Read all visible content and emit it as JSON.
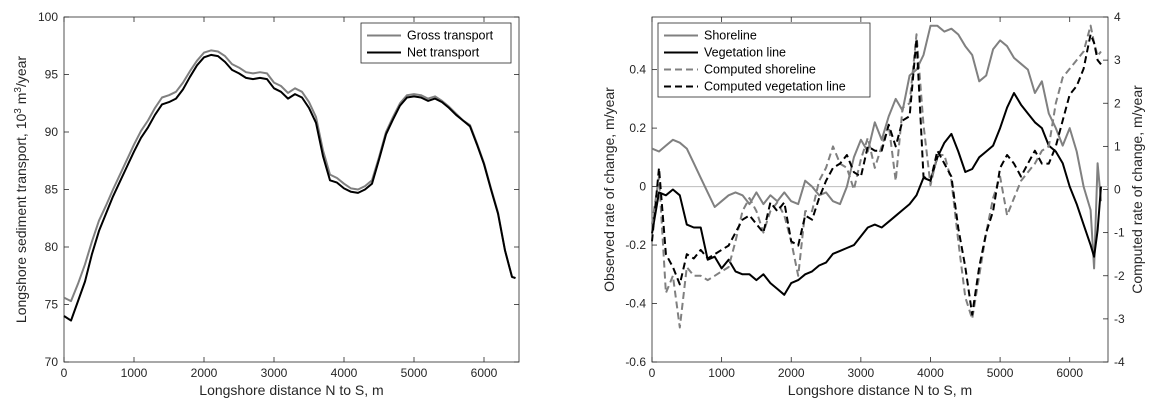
{
  "chart_data": [
    {
      "type": "line",
      "xlabel": "Longshore distance N to S, m",
      "ylabel": "Longshore sediment transport, 10",
      "ylabel_sup": "3",
      "ylabel_mid": " m",
      "ylabel_sup2": "3",
      "ylabel_end": "/year",
      "xlim": [
        0,
        6500
      ],
      "ylim": [
        70,
        100
      ],
      "xticks": [
        0,
        1000,
        2000,
        3000,
        4000,
        5000,
        6000
      ],
      "yticks": [
        70,
        75,
        80,
        85,
        90,
        95,
        100
      ],
      "legend_position": "top-right",
      "series": [
        {
          "name": "Gross transport",
          "color": "#808080",
          "x": [
            0,
            100,
            200,
            300,
            400,
            500,
            600,
            700,
            800,
            900,
            1000,
            1100,
            1200,
            1300,
            1400,
            1500,
            1600,
            1700,
            1800,
            1900,
            2000,
            2100,
            2200,
            2300,
            2400,
            2500,
            2600,
            2700,
            2800,
            2900,
            3000,
            3100,
            3200,
            3300,
            3400,
            3500,
            3600,
            3700,
            3800,
            3900,
            4000,
            4100,
            4200,
            4300,
            4400,
            4500,
            4600,
            4700,
            4800,
            4900,
            5000,
            5100,
            5200,
            5300,
            5400,
            5500,
            5600,
            5700,
            5800,
            5900,
            6000,
            6100,
            6200,
            6300,
            6400,
            6450
          ],
          "y": [
            75.6,
            75.3,
            76.8,
            78.5,
            80.5,
            82.3,
            83.6,
            85.0,
            86.3,
            87.6,
            88.9,
            90.1,
            91.0,
            92.1,
            93.0,
            93.2,
            93.5,
            94.3,
            95.3,
            96.2,
            96.9,
            97.1,
            97.0,
            96.6,
            95.9,
            95.6,
            95.2,
            95.1,
            95.2,
            95.1,
            94.3,
            94.0,
            93.4,
            93.8,
            93.5,
            92.6,
            91.3,
            88.4,
            86.3,
            86.0,
            85.5,
            85.1,
            85.0,
            85.3,
            85.8,
            87.8,
            90.0,
            91.3,
            92.5,
            93.2,
            93.3,
            93.2,
            92.9,
            93.1,
            92.7,
            92.2,
            91.6,
            91.0,
            90.6,
            89.0,
            87.3,
            85.1,
            83.0,
            79.7,
            77.4,
            77.3
          ]
        },
        {
          "name": "Net transport",
          "color": "#000000",
          "x": [
            0,
            100,
            200,
            300,
            400,
            500,
            600,
            700,
            800,
            900,
            1000,
            1100,
            1200,
            1300,
            1400,
            1500,
            1600,
            1700,
            1800,
            1900,
            2000,
            2100,
            2200,
            2300,
            2400,
            2500,
            2600,
            2700,
            2800,
            2900,
            3000,
            3100,
            3200,
            3300,
            3400,
            3500,
            3600,
            3700,
            3800,
            3900,
            4000,
            4100,
            4200,
            4300,
            4400,
            4500,
            4600,
            4700,
            4800,
            4900,
            5000,
            5100,
            5200,
            5300,
            5400,
            5500,
            5600,
            5700,
            5800,
            5900,
            6000,
            6100,
            6200,
            6300,
            6400,
            6450
          ],
          "y": [
            74.0,
            73.6,
            75.3,
            77.0,
            79.4,
            81.4,
            82.9,
            84.4,
            85.7,
            87.0,
            88.3,
            89.5,
            90.4,
            91.5,
            92.4,
            92.6,
            92.9,
            93.7,
            94.8,
            95.8,
            96.5,
            96.7,
            96.6,
            96.1,
            95.4,
            95.1,
            94.7,
            94.6,
            94.7,
            94.6,
            93.8,
            93.5,
            92.9,
            93.3,
            93.0,
            92.1,
            90.8,
            87.9,
            85.8,
            85.6,
            85.1,
            84.8,
            84.7,
            85.0,
            85.5,
            87.6,
            89.8,
            91.1,
            92.3,
            93.0,
            93.1,
            93.0,
            92.7,
            92.9,
            92.6,
            92.1,
            91.5,
            91.0,
            90.5,
            88.9,
            87.2,
            85.0,
            82.9,
            79.7,
            77.4,
            77.3
          ]
        }
      ]
    },
    {
      "type": "line",
      "xlabel": "Longshore distance N to S, m",
      "ylabel": "Observed rate of change, m/year",
      "ylabel_right": "Computed rate of change, m/year",
      "xlim": [
        0,
        6550
      ],
      "ylim": [
        -0.6,
        0.58
      ],
      "ylim_right": [
        -4,
        4
      ],
      "xticks": [
        0,
        1000,
        2000,
        3000,
        4000,
        5000,
        6000
      ],
      "yticks": [
        -0.6,
        -0.4,
        -0.2,
        0,
        0.2,
        0.4
      ],
      "yticks_labels": [
        "-0.6",
        "-0.4",
        "-0.2",
        "0",
        "0.2",
        "0.4"
      ],
      "yticks_right": [
        -4,
        -3,
        -2,
        -1,
        0,
        1,
        2,
        3,
        4
      ],
      "zero_line": true,
      "legend_position": "top-left",
      "series": [
        {
          "name": "Shoreline",
          "axis": "left",
          "style": "solid",
          "color": "#808080",
          "x": [
            0,
            100,
            200,
            300,
            400,
            500,
            600,
            700,
            800,
            900,
            1000,
            1100,
            1200,
            1300,
            1400,
            1500,
            1600,
            1700,
            1800,
            1900,
            2000,
            2100,
            2200,
            2300,
            2400,
            2500,
            2600,
            2700,
            2800,
            2900,
            3000,
            3100,
            3200,
            3300,
            3400,
            3500,
            3600,
            3700,
            3800,
            3900,
            4000,
            4100,
            4200,
            4300,
            4400,
            4500,
            4600,
            4700,
            4800,
            4900,
            5000,
            5100,
            5200,
            5300,
            5400,
            5500,
            5600,
            5700,
            5800,
            5900,
            6000,
            6100,
            6200,
            6300,
            6350,
            6400,
            6450
          ],
          "y": [
            0.13,
            0.12,
            0.14,
            0.16,
            0.15,
            0.13,
            0.08,
            0.03,
            -0.02,
            -0.07,
            -0.05,
            -0.03,
            -0.02,
            -0.03,
            -0.06,
            -0.02,
            -0.06,
            -0.03,
            -0.05,
            -0.02,
            -0.05,
            -0.06,
            0.02,
            0.0,
            -0.03,
            -0.02,
            -0.05,
            -0.06,
            0.0,
            0.1,
            0.16,
            0.12,
            0.22,
            0.16,
            0.24,
            0.3,
            0.26,
            0.38,
            0.4,
            0.45,
            0.55,
            0.55,
            0.53,
            0.54,
            0.52,
            0.48,
            0.45,
            0.36,
            0.38,
            0.47,
            0.5,
            0.48,
            0.44,
            0.42,
            0.4,
            0.32,
            0.36,
            0.25,
            0.2,
            0.14,
            0.2,
            0.12,
            0.0,
            -0.08,
            -0.28,
            0.08,
            -0.05
          ]
        },
        {
          "name": "Vegetation line",
          "axis": "left",
          "style": "solid",
          "color": "#000000",
          "x": [
            0,
            100,
            200,
            300,
            400,
            500,
            600,
            700,
            800,
            900,
            1000,
            1100,
            1200,
            1300,
            1400,
            1500,
            1600,
            1700,
            1800,
            1900,
            2000,
            2100,
            2200,
            2300,
            2400,
            2500,
            2600,
            2700,
            2800,
            2900,
            3000,
            3100,
            3200,
            3300,
            3400,
            3500,
            3600,
            3700,
            3800,
            3900,
            4000,
            4100,
            4200,
            4300,
            4400,
            4500,
            4600,
            4700,
            4800,
            4900,
            5000,
            5100,
            5200,
            5300,
            5400,
            5500,
            5600,
            5700,
            5800,
            5900,
            6000,
            6100,
            6200,
            6300,
            6350,
            6400,
            6450
          ],
          "y": [
            -0.16,
            -0.02,
            -0.03,
            -0.01,
            -0.03,
            -0.13,
            -0.14,
            -0.14,
            -0.25,
            -0.24,
            -0.28,
            -0.25,
            -0.29,
            -0.3,
            -0.3,
            -0.32,
            -0.3,
            -0.33,
            -0.35,
            -0.37,
            -0.33,
            -0.32,
            -0.3,
            -0.29,
            -0.27,
            -0.26,
            -0.23,
            -0.22,
            -0.21,
            -0.2,
            -0.17,
            -0.14,
            -0.13,
            -0.14,
            -0.12,
            -0.1,
            -0.08,
            -0.06,
            -0.03,
            0.03,
            0.02,
            0.1,
            0.15,
            0.18,
            0.12,
            0.05,
            0.06,
            0.1,
            0.12,
            0.14,
            0.2,
            0.27,
            0.32,
            0.28,
            0.25,
            0.22,
            0.2,
            0.14,
            0.12,
            0.08,
            0.0,
            -0.06,
            -0.13,
            -0.2,
            -0.24,
            -0.15,
            0.0
          ]
        },
        {
          "name": "Computed shoreline",
          "axis": "right",
          "style": "dashed",
          "color": "#808080",
          "x": [
            0,
            100,
            200,
            300,
            400,
            500,
            600,
            700,
            800,
            900,
            1000,
            1100,
            1200,
            1300,
            1400,
            1500,
            1600,
            1700,
            1800,
            1900,
            2000,
            2100,
            2200,
            2300,
            2400,
            2500,
            2600,
            2700,
            2800,
            2900,
            3000,
            3100,
            3200,
            3300,
            3400,
            3500,
            3600,
            3700,
            3800,
            3900,
            4000,
            4100,
            4200,
            4300,
            4400,
            4500,
            4600,
            4700,
            4800,
            4900,
            5000,
            5100,
            5200,
            5300,
            5400,
            5500,
            5600,
            5700,
            5800,
            5900,
            6000,
            6100,
            6200,
            6300,
            6350,
            6400,
            6450
          ],
          "y": [
            -0.8,
            0.3,
            -2.4,
            -2.0,
            -3.2,
            -1.8,
            -2.0,
            -2.0,
            -2.1,
            -2.0,
            -1.9,
            -1.8,
            -1.2,
            -0.5,
            -0.2,
            -0.5,
            -1.0,
            -0.5,
            -0.3,
            -0.6,
            -1.2,
            -2.0,
            -0.5,
            -0.5,
            0.2,
            0.5,
            1.0,
            0.6,
            0.5,
            0.0,
            0.7,
            1.2,
            0.5,
            1.0,
            1.5,
            0.2,
            1.9,
            2.0,
            3.6,
            1.5,
            0.1,
            0.8,
            0.8,
            0.2,
            -1.2,
            -2.5,
            -3.0,
            -2.0,
            -1.0,
            -0.2,
            0.3,
            -0.6,
            -0.2,
            0.2,
            0.4,
            0.6,
            0.9,
            1.0,
            2.0,
            2.6,
            2.8,
            3.0,
            3.2,
            3.8,
            3.4,
            3.1,
            3.2
          ]
        },
        {
          "name": "Computed vegetation line",
          "axis": "right",
          "style": "dashed",
          "color": "#000000",
          "x": [
            0,
            100,
            200,
            300,
            400,
            500,
            600,
            700,
            800,
            900,
            1000,
            1100,
            1200,
            1300,
            1400,
            1500,
            1600,
            1700,
            1800,
            1900,
            2000,
            2100,
            2200,
            2300,
            2400,
            2500,
            2600,
            2700,
            2800,
            2900,
            3000,
            3100,
            3200,
            3300,
            3400,
            3500,
            3600,
            3700,
            3800,
            3900,
            4000,
            4100,
            4200,
            4300,
            4400,
            4500,
            4600,
            4700,
            4800,
            4900,
            5000,
            5100,
            5200,
            5300,
            5400,
            5500,
            5600,
            5700,
            5800,
            5900,
            6000,
            6100,
            6200,
            6300,
            6350,
            6400,
            6450
          ],
          "y": [
            -1.2,
            0.5,
            -1.5,
            -1.8,
            -2.2,
            -1.5,
            -1.6,
            -1.4,
            -1.6,
            -1.5,
            -1.4,
            -1.3,
            -1.0,
            -0.7,
            -0.6,
            -0.8,
            -1.0,
            -0.3,
            -0.5,
            -0.3,
            -1.2,
            -1.3,
            -0.6,
            -0.7,
            -0.2,
            0.2,
            0.5,
            0.6,
            0.8,
            0.4,
            0.3,
            1.0,
            0.9,
            0.9,
            1.5,
            1.0,
            1.6,
            1.7,
            3.5,
            0.3,
            0.2,
            0.9,
            0.6,
            0.3,
            -0.9,
            -1.8,
            -2.9,
            -1.8,
            -1.0,
            -0.5,
            0.5,
            0.8,
            0.6,
            0.3,
            0.6,
            0.9,
            0.6,
            0.6,
            1.0,
            1.6,
            2.2,
            2.4,
            2.8,
            3.6,
            3.4,
            3.0,
            2.9
          ]
        }
      ]
    }
  ]
}
